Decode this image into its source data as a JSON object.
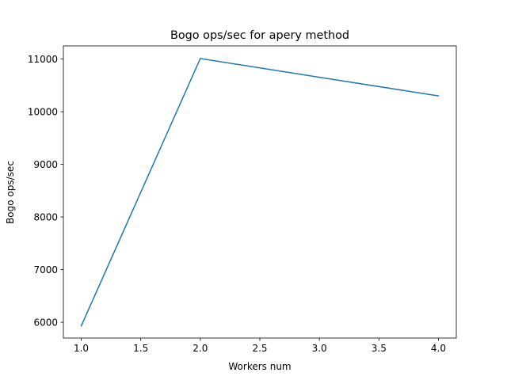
{
  "chart_data": {
    "type": "line",
    "title": "Bogo ops/sec for apery method",
    "xlabel": "Workers num",
    "ylabel": "Bogo ops/sec",
    "xlim": [
      0.85,
      4.15
    ],
    "ylim": [
      5700,
      11250
    ],
    "xticks": [
      1.0,
      1.5,
      2.0,
      2.5,
      3.0,
      3.5,
      4.0
    ],
    "xtick_labels": [
      "1.0",
      "1.5",
      "2.0",
      "2.5",
      "3.0",
      "3.5",
      "4.0"
    ],
    "yticks": [
      6000,
      7000,
      8000,
      9000,
      10000,
      11000
    ],
    "ytick_labels": [
      "6000",
      "7000",
      "8000",
      "9000",
      "10000",
      "11000"
    ],
    "grid": false,
    "series": [
      {
        "color": "#1f77b4",
        "x": [
          1,
          2,
          4
        ],
        "y": [
          5930,
          11010,
          10300
        ]
      }
    ]
  }
}
